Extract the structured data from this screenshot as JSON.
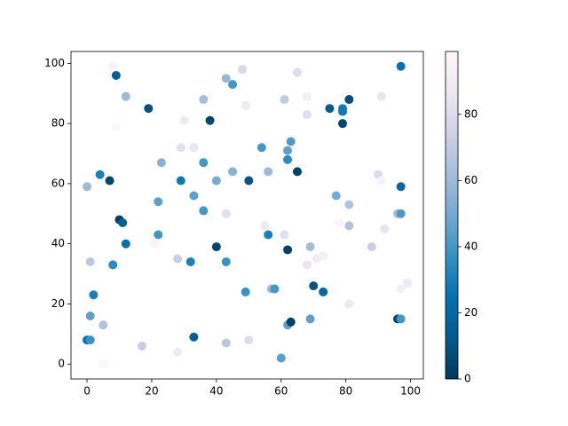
{
  "chart_data": {
    "type": "scatter",
    "x": [
      8,
      9,
      12,
      19,
      9,
      30,
      38,
      36,
      43,
      45,
      48,
      49,
      65,
      61,
      68,
      68,
      75,
      79,
      79,
      79,
      81,
      91,
      97,
      29,
      33,
      23,
      36,
      4,
      7,
      0,
      29,
      33,
      22,
      40,
      45,
      50,
      54,
      63,
      62,
      62,
      56,
      65,
      36,
      43,
      10,
      11,
      22,
      21,
      12,
      40,
      55,
      56,
      61,
      62,
      69,
      77,
      81,
      81,
      78,
      90,
      91,
      96,
      97,
      97,
      92,
      88,
      1,
      8,
      28,
      32,
      43,
      68,
      71,
      73,
      2,
      49,
      57,
      58,
      70,
      73,
      97,
      99,
      1,
      5,
      0,
      1,
      5,
      17,
      28,
      33,
      43,
      50,
      60,
      62,
      63,
      69,
      81,
      96,
      97
    ],
    "y": [
      99,
      96,
      89,
      85,
      79,
      81,
      81,
      88,
      95,
      93,
      98,
      86,
      97,
      88,
      89,
      83,
      85,
      85,
      84,
      80,
      88,
      89,
      99,
      72,
      72,
      67,
      67,
      63,
      61,
      59,
      61,
      56,
      54,
      61,
      64,
      61,
      72,
      74,
      71,
      68,
      64,
      64,
      51,
      50,
      48,
      47,
      43,
      40,
      40,
      39,
      46,
      43,
      43,
      38,
      39,
      56,
      53,
      46,
      47,
      63,
      61,
      50,
      50,
      59,
      45,
      39,
      34,
      33,
      35,
      34,
      34,
      33,
      35,
      36,
      23,
      24,
      25,
      25,
      26,
      24,
      25,
      27,
      16,
      13,
      8,
      8,
      0,
      6,
      4,
      9,
      7,
      8,
      2,
      13,
      14,
      15,
      20,
      15,
      15
    ],
    "c": [
      95,
      15,
      60,
      8,
      98,
      88,
      5,
      62,
      58,
      40,
      78,
      88,
      80,
      70,
      92,
      82,
      12,
      30,
      28,
      5,
      8,
      85,
      25,
      82,
      85,
      55,
      40,
      30,
      5,
      60,
      28,
      45,
      45,
      50,
      55,
      10,
      40,
      42,
      45,
      35,
      60,
      3,
      40,
      82,
      2,
      15,
      40,
      95,
      25,
      5,
      88,
      30,
      82,
      3,
      62,
      50,
      65,
      65,
      97,
      80,
      95,
      62,
      42,
      20,
      85,
      72,
      68,
      35,
      72,
      30,
      38,
      85,
      90,
      92,
      30,
      38,
      60,
      40,
      10,
      20,
      92,
      88,
      45,
      65,
      25,
      38,
      97,
      72,
      88,
      15,
      68,
      80,
      45,
      45,
      3,
      45,
      88,
      5,
      40
    ],
    "colormap": [
      "#023858",
      "#045a8d",
      "#0570b0",
      "#3690c0",
      "#74a9cf",
      "#a6bddb",
      "#d0d1e6",
      "#ece7f2",
      "#fff7fb"
    ],
    "clim": [
      0,
      99
    ],
    "cticks": [
      0,
      20,
      40,
      60,
      80
    ],
    "xlim": [
      -4.95,
      103.95
    ],
    "ylim": [
      -4.95,
      103.95
    ],
    "xticks": [
      0,
      20,
      40,
      60,
      80,
      100
    ],
    "yticks": [
      0,
      20,
      40,
      60,
      80,
      100
    ]
  }
}
